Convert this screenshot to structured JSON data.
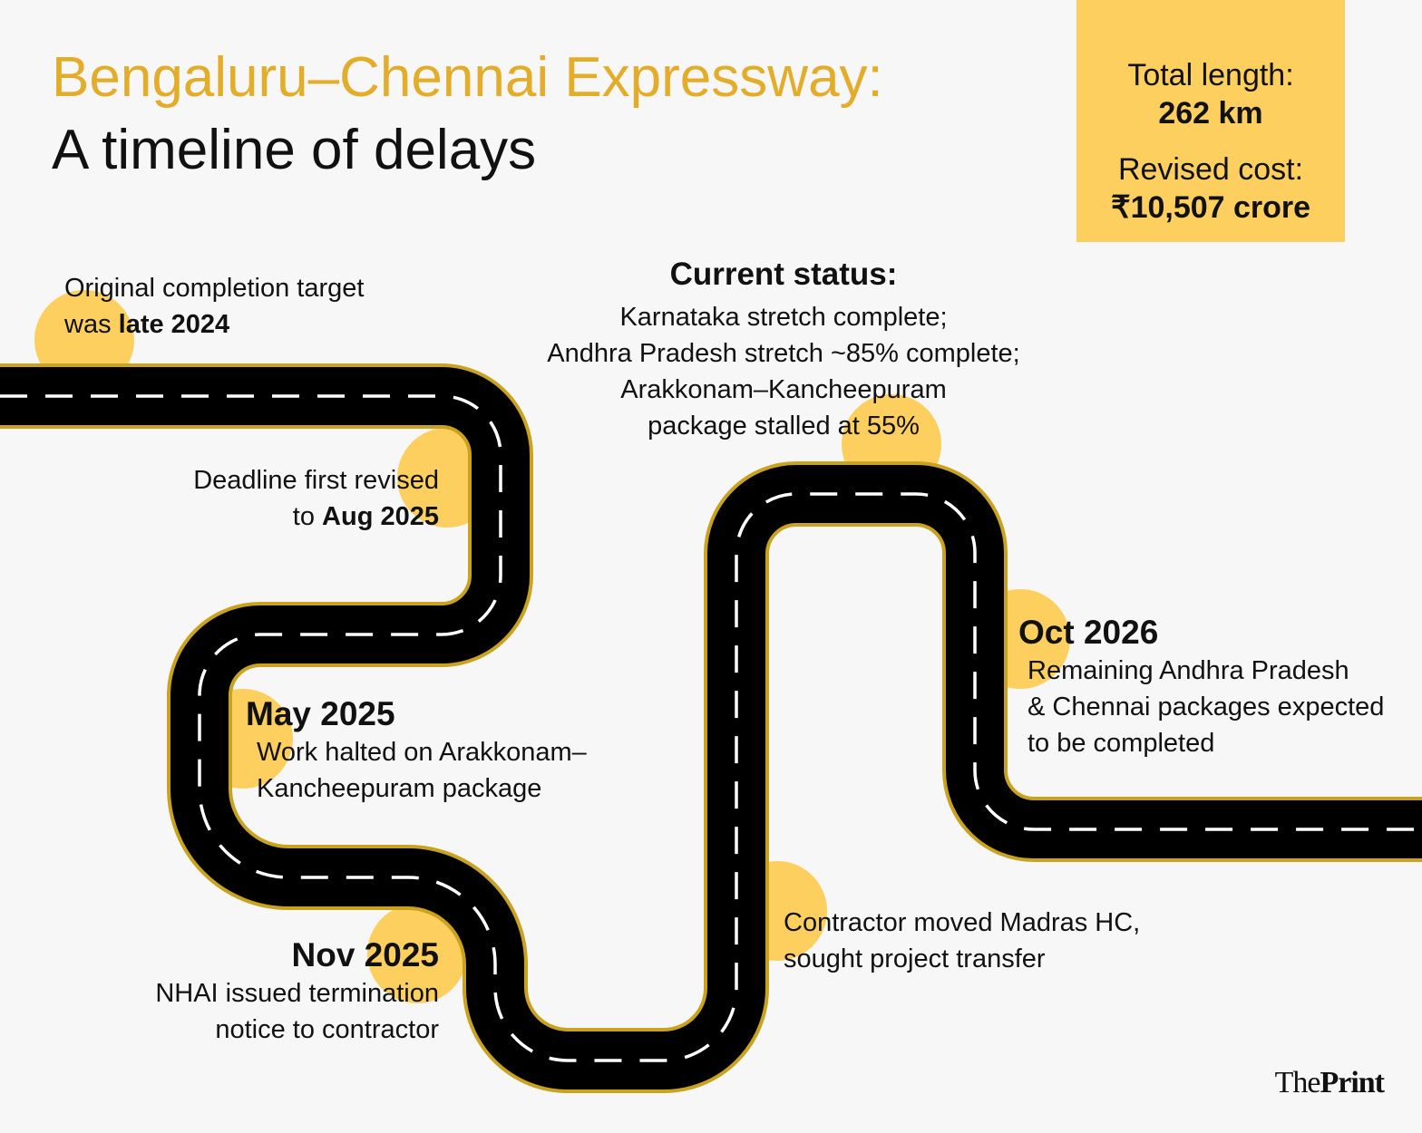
{
  "header": {
    "title": "Bengaluru–Chennai Expressway:",
    "subtitle": "A timeline of delays"
  },
  "summary": {
    "length_label": "Total length:",
    "length_value": "262 km",
    "cost_label": "Revised cost:",
    "cost_value": "₹10,507 crore"
  },
  "milestones": [
    {
      "text_1": "Original completion target",
      "text_2": "was",
      "emphasis": "late 2024"
    },
    {
      "text_1": "Deadline first revised",
      "text_2": "to",
      "emphasis": "Aug 2025"
    },
    {
      "date": "May 2025",
      "lines": [
        "Work halted on Arakkonam–",
        "Kancheepuram package"
      ]
    },
    {
      "date": "Nov 2025",
      "lines": [
        "NHAI issued termination",
        "notice to contractor"
      ]
    },
    {
      "lines": [
        "Contractor moved Madras HC,",
        "sought project transfer"
      ]
    },
    {
      "heading": "Current status:",
      "lines": [
        "Karnataka stretch complete;",
        "Andhra Pradesh stretch ~85% complete;",
        "Arakkonam–Kancheepuram",
        "package stalled at 55%"
      ]
    },
    {
      "date": "Oct 2026",
      "lines": [
        "Remaining Andhra Pradesh",
        "& Chennai packages expected",
        "to be completed"
      ]
    }
  ],
  "logo": {
    "part_1": "The",
    "part_2": "Print"
  }
}
